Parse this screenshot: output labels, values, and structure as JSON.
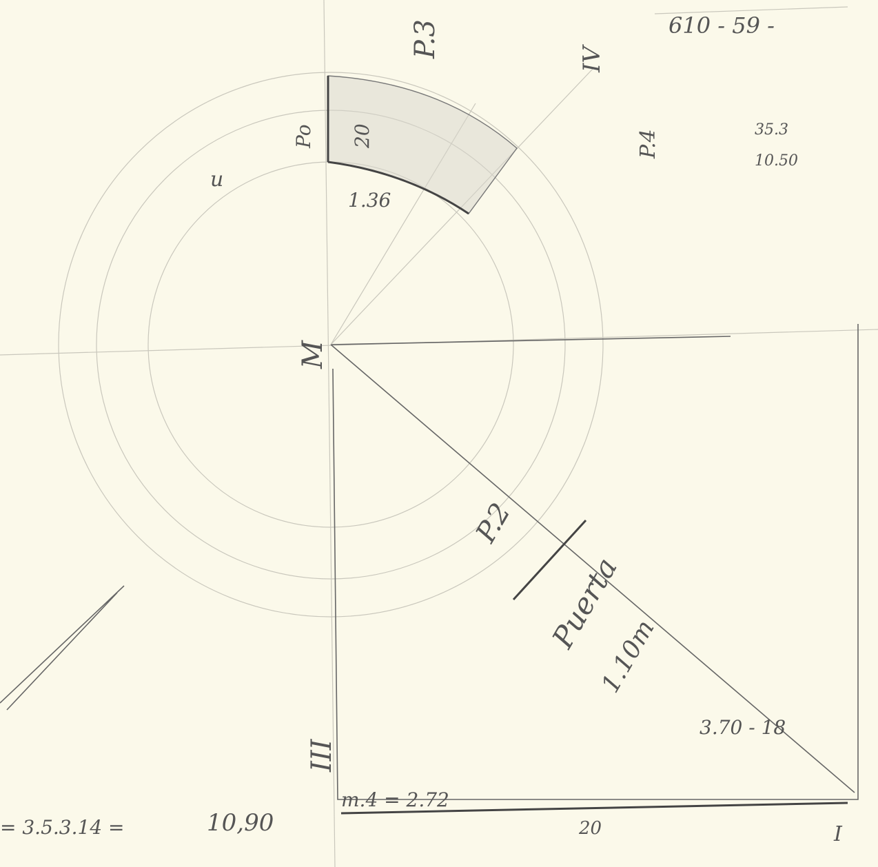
{
  "sketch": {
    "top_note": "610 - 59 -",
    "labels": {
      "p3": "P.3",
      "p4": "P.4",
      "p2": "P.2",
      "p0": "Po",
      "iv": "IV",
      "m": "M",
      "iii": "III",
      "i": "I",
      "u": "u"
    },
    "measures": {
      "upper_a": "35.3",
      "upper_b": "10.50",
      "segment_depth": "20",
      "segment_width": "1.36",
      "door": "Puerta",
      "door_width": "1.10m",
      "diagonal": "3.70 - 18",
      "bottom_formula": "= 3.5.3.14 =",
      "bottom_total": "10,90",
      "bottom_div": "m.4 = 2.72",
      "bottom_len": "20"
    }
  }
}
